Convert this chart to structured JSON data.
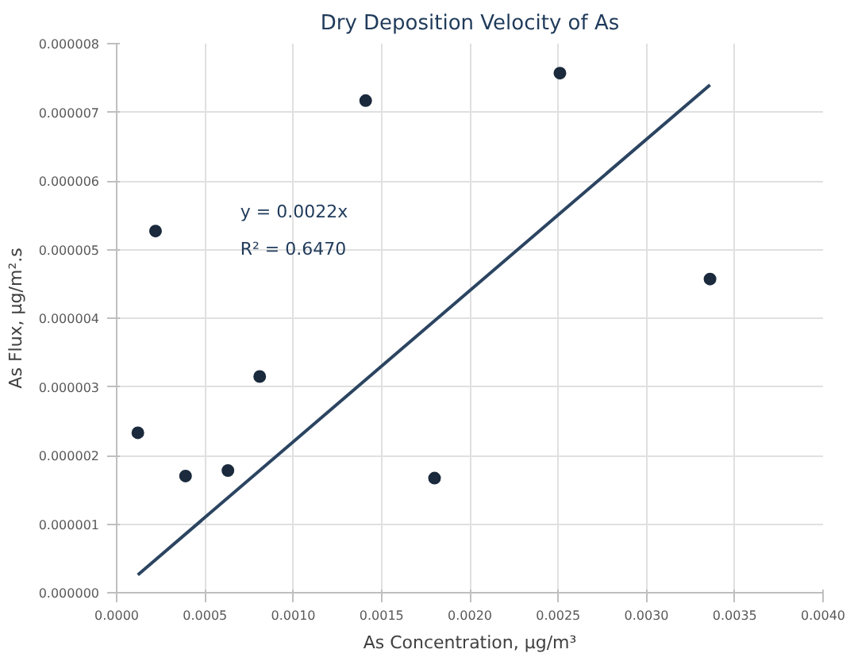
{
  "chart_data": {
    "type": "scatter",
    "title": "Dry Deposition Velocity of As",
    "xlabel": "As Concentration, μg/m³",
    "ylabel": "As Flux, μg/m².s",
    "x": [
      0.00012,
      0.00022,
      0.00039,
      0.00063,
      0.00081,
      0.00141,
      0.0018,
      0.00251,
      0.00336
    ],
    "series": [
      {
        "color": "#1b2a3d",
        "values": [
          2.33e-06,
          5.27e-06,
          1.7e-06,
          1.78e-06,
          3.15e-06,
          7.17e-06,
          1.67e-06,
          7.57e-06,
          4.57e-06
        ]
      },
      {
        "type": "line",
        "marker": "none",
        "color": "#2b4461",
        "x": [
          0.00012,
          0.00336
        ],
        "values": [
          2.6e-07,
          7.4e-06
        ]
      }
    ],
    "annotations": [
      {
        "text": "y = 0.0022x"
      },
      {
        "text": "R² = 0.6470"
      }
    ],
    "xlim": [
      0,
      0.004
    ],
    "xticks": [
      {
        "value": 0,
        "label": "0.0000"
      },
      {
        "value": 0.0005,
        "label": "0.0005"
      },
      {
        "value": 0.001,
        "label": "0.0010"
      },
      {
        "value": 0.0015,
        "label": "0.0015"
      },
      {
        "value": 0.002,
        "label": "0.0020"
      },
      {
        "value": 0.0025,
        "label": "0.0025"
      },
      {
        "value": 0.003,
        "label": "0.0030"
      },
      {
        "value": 0.0035,
        "label": "0.0035"
      },
      {
        "value": 0.004,
        "label": "0.0040"
      }
    ],
    "ylim": [
      0,
      8e-06
    ],
    "yticks": [
      {
        "value": 0,
        "label": "0.000000"
      },
      {
        "value": 1e-06,
        "label": "0.000001"
      },
      {
        "value": 2e-06,
        "label": "0.000002"
      },
      {
        "value": 3e-06,
        "label": "0.000003"
      },
      {
        "value": 4e-06,
        "label": "0.000004"
      },
      {
        "value": 5e-06,
        "label": "0.000005"
      },
      {
        "value": 6e-06,
        "label": "0.000006"
      },
      {
        "value": 7e-06,
        "label": "0.000007"
      },
      {
        "value": 8e-06,
        "label": "0.000008"
      }
    ],
    "grid": true,
    "marker": "circle"
  }
}
